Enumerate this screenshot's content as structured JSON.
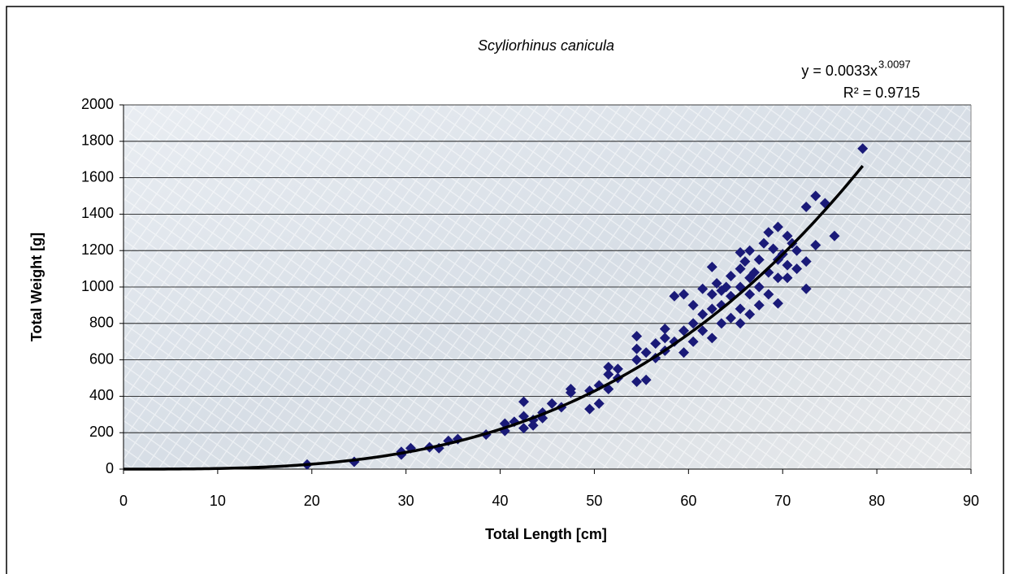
{
  "chart_data": {
    "type": "scatter",
    "title": "Scyliorhinus canicula",
    "x_label": "Total Length [cm]",
    "y_label": "Total Weight [g]",
    "xlim": [
      0,
      90
    ],
    "xticks": [
      0,
      10,
      20,
      30,
      40,
      50,
      60,
      70,
      80,
      90
    ],
    "ylim": [
      0,
      2000
    ],
    "yticks": [
      0,
      200,
      400,
      600,
      800,
      1000,
      1200,
      1400,
      1600,
      1800,
      2000
    ],
    "grid": true,
    "series": [
      {
        "color": "#1a1a78",
        "x": [
          19.5,
          24.5,
          29.5,
          29.5,
          30.5,
          32.5,
          33.5,
          34.5,
          35.5,
          38.5,
          40.5,
          40.5,
          41.5,
          42.5,
          42.5,
          42.5,
          43.5,
          43.5,
          44.5,
          44.5,
          45.5,
          46.5,
          47.5,
          47.5,
          49.5,
          49.5,
          50.5,
          50.5,
          51.5,
          51.5,
          51.5,
          52.5,
          52.5,
          54.5,
          54.5,
          54.5,
          54.5,
          55.5,
          55.5,
          56.5,
          56.5,
          57.5,
          57.5,
          57.5,
          58.5,
          58.5,
          59.5,
          59.5,
          59.5,
          60.5,
          60.5,
          60.5,
          61.5,
          61.5,
          61.5,
          62.5,
          62.5,
          62.5,
          62.5,
          63.5,
          63.5,
          63.5,
          64.5,
          64.5,
          64.5,
          65.5,
          65.5,
          65.5,
          65.5,
          65.5,
          66.5,
          66.5,
          66.5,
          66.5,
          67.5,
          67.5,
          67.5,
          68.5,
          68.5,
          68.5,
          69.5,
          69.5,
          69.5,
          69.5,
          70.5,
          70.5,
          70.5,
          71.5,
          71.5,
          72.5,
          72.5,
          72.5,
          73.5,
          73.5,
          74.5,
          75.5,
          78.5,
          66,
          68,
          64,
          67,
          70,
          71,
          63,
          69
        ],
        "values": [
          25,
          40,
          80,
          95,
          115,
          120,
          115,
          155,
          165,
          190,
          210,
          250,
          260,
          225,
          370,
          290,
          240,
          270,
          310,
          280,
          360,
          340,
          420,
          440,
          330,
          430,
          360,
          460,
          440,
          520,
          560,
          500,
          550,
          480,
          600,
          660,
          730,
          490,
          640,
          610,
          690,
          650,
          720,
          770,
          700,
          950,
          640,
          760,
          960,
          700,
          800,
          900,
          760,
          850,
          990,
          720,
          880,
          960,
          1110,
          800,
          900,
          980,
          830,
          950,
          1060,
          800,
          880,
          1000,
          1100,
          1190,
          850,
          960,
          1050,
          1200,
          900,
          1000,
          1150,
          960,
          1080,
          1300,
          910,
          1050,
          1150,
          1330,
          1050,
          1120,
          1280,
          1100,
          1200,
          990,
          1140,
          1440,
          1230,
          1500,
          1460,
          1280,
          1760,
          1140,
          1240,
          1000,
          1080,
          1180,
          1240,
          1020,
          1210
        ]
      }
    ],
    "trendline": {
      "label": "y = 0.0033x",
      "exponent_label": "3.0097",
      "r2_label": "R² = 0.9715",
      "coefficient": 0.0033,
      "exponent": 3.0097,
      "xlim": [
        0,
        78.5
      ],
      "color": "#000000"
    }
  }
}
